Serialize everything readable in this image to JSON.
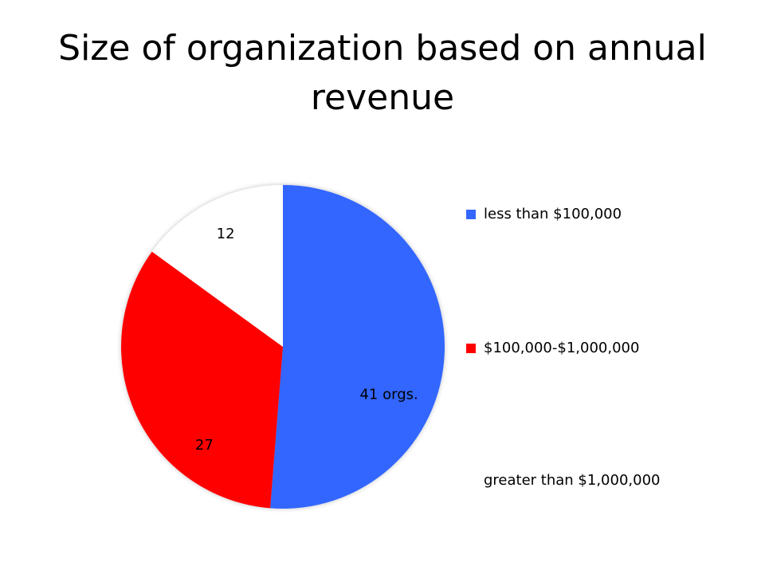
{
  "slide": {
    "title": "Size of organization based on annual revenue"
  },
  "chart_data": {
    "type": "pie",
    "categories": [
      "less than $100,000",
      "$100,000-$1,000,000",
      "greater than $1,000,000"
    ],
    "values": [
      41,
      27,
      12
    ],
    "data_labels": [
      "41 orgs.",
      "27",
      "12"
    ],
    "colors": [
      "#3366ff",
      "#ff0000",
      "#ffffff"
    ],
    "legend_placement": "right",
    "start_angle_deg": 0,
    "direction": "clockwise"
  }
}
